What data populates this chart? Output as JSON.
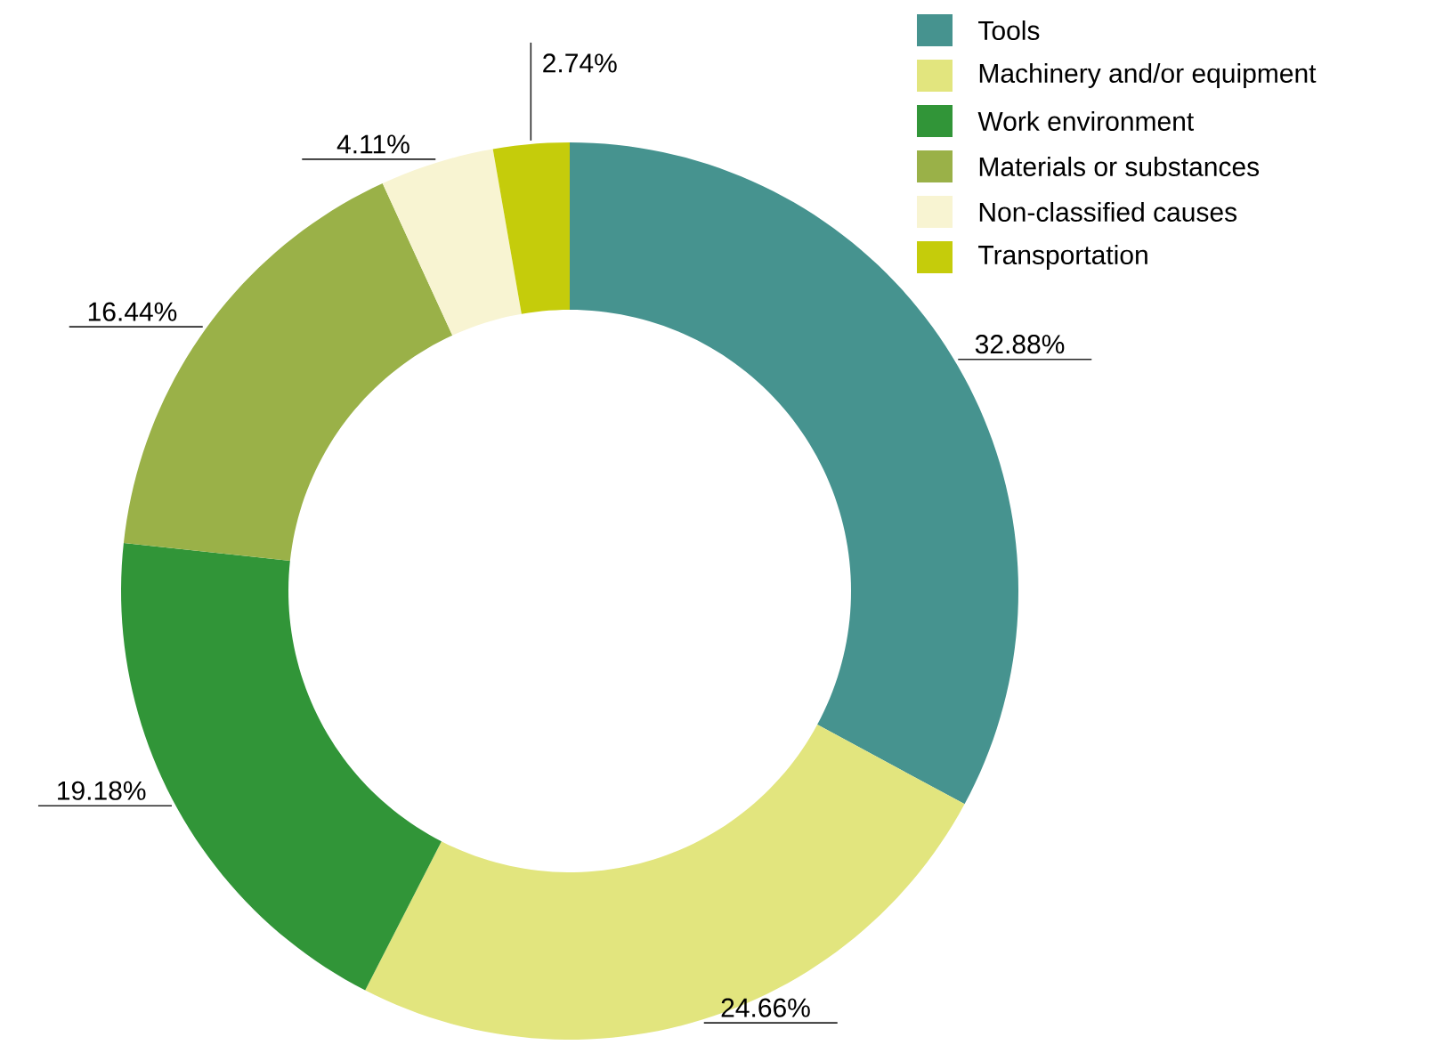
{
  "chart_data": {
    "type": "donut",
    "categories": [
      "Tools",
      "Machinery and/or equipment",
      "Work environment",
      "Materials or substances",
      "Non-classified causes",
      "Transportation"
    ],
    "values": [
      32.88,
      24.66,
      19.18,
      16.44,
      4.11,
      2.74
    ],
    "colors": [
      "#46938f",
      "#e2e57e",
      "#319538",
      "#9ab148",
      "#f8f4d2",
      "#c5cc0b"
    ],
    "value_labels": [
      "32.88%",
      "24.66%",
      "19.18%",
      "16.44%",
      "4.11%",
      "2.74%"
    ],
    "legend": "top right"
  }
}
